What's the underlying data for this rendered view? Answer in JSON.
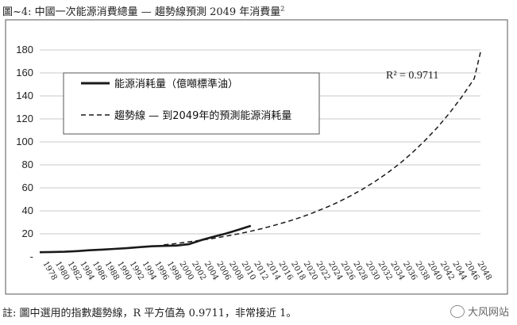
{
  "caption": {
    "text": "圖~4:  中國一次能源消費總量  —  趨勢線預測 2049 年消費量",
    "footnote_mark": "2"
  },
  "note": {
    "text": "註:  圖中選用的指數趨勢線，R 平方值為 0.9711，非常接近 1。"
  },
  "watermark": {
    "text": "大风网站"
  },
  "colors": {
    "actual": "#1a1a1a",
    "trend": "#1a1a1a",
    "frame": "#555555"
  },
  "chart_data": {
    "type": "line",
    "title": "",
    "xlabel": "",
    "ylabel": "",
    "ylim": [
      0,
      180
    ],
    "yticks": [
      0,
      20,
      40,
      60,
      80,
      100,
      120,
      140,
      160,
      180
    ],
    "ytick_labels": [
      "-",
      "20",
      "40",
      "60",
      "80",
      "100",
      "120",
      "140",
      "160",
      "180"
    ],
    "x_range": [
      1978,
      2049
    ],
    "xtick_labels": [
      "1978",
      "1980",
      "1982",
      "1984",
      "1986",
      "1988",
      "1990",
      "1992",
      "1994",
      "1996",
      "1998",
      "2000",
      "2002",
      "2004",
      "2006",
      "2008",
      "2010",
      "2012",
      "2014",
      "2016",
      "2018",
      "2020",
      "2022",
      "2024",
      "2026",
      "2028",
      "2030",
      "2032",
      "2034",
      "2036",
      "2038",
      "2040",
      "2042",
      "2044",
      "2046",
      "2048"
    ],
    "grid": "horizontal",
    "legend_position": "top-left",
    "annotation": "R² = 0.9711",
    "series": [
      {
        "name": "能源消耗量（億噸標準油）",
        "style": "solid",
        "points": [
          [
            1978,
            4.0
          ],
          [
            1980,
            4.2
          ],
          [
            1982,
            4.4
          ],
          [
            1984,
            5.0
          ],
          [
            1986,
            5.7
          ],
          [
            1988,
            6.3
          ],
          [
            1990,
            6.9
          ],
          [
            1992,
            7.5
          ],
          [
            1994,
            8.4
          ],
          [
            1996,
            9.2
          ],
          [
            1998,
            9.5
          ],
          [
            2000,
            9.8
          ],
          [
            2002,
            11.0
          ],
          [
            2004,
            14.5
          ],
          [
            2006,
            17.5
          ],
          [
            2008,
            20.3
          ],
          [
            2010,
            23.5
          ],
          [
            2012,
            27.0
          ]
        ]
      },
      {
        "name": "趨勢線 — 到2049年的預測能源消耗量",
        "style": "dashed",
        "points": [
          [
            1998,
            10.4
          ],
          [
            2000,
            11.6
          ],
          [
            2002,
            13.0
          ],
          [
            2004,
            14.5
          ],
          [
            2006,
            16.1
          ],
          [
            2008,
            18.0
          ],
          [
            2010,
            20.0
          ],
          [
            2012,
            22.3
          ],
          [
            2014,
            24.8
          ],
          [
            2016,
            27.7
          ],
          [
            2018,
            30.8
          ],
          [
            2020,
            34.3
          ],
          [
            2022,
            38.2
          ],
          [
            2024,
            42.6
          ],
          [
            2026,
            47.4
          ],
          [
            2028,
            52.8
          ],
          [
            2030,
            58.8
          ],
          [
            2032,
            65.5
          ],
          [
            2034,
            72.9
          ],
          [
            2036,
            81.2
          ],
          [
            2038,
            90.5
          ],
          [
            2040,
            100.8
          ],
          [
            2042,
            112.2
          ],
          [
            2044,
            125.0
          ],
          [
            2046,
            139.2
          ],
          [
            2048,
            155.1
          ],
          [
            2049,
            178.0
          ]
        ]
      }
    ]
  }
}
